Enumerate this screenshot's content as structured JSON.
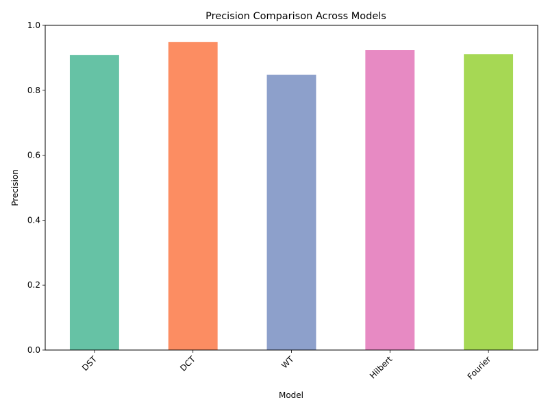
{
  "chart_data": {
    "type": "bar",
    "title": "Precision Comparison Across Models",
    "xlabel": "Model",
    "ylabel": "Precision",
    "categories": [
      "DST",
      "DCT",
      "WT",
      "Hilbert",
      "Fourier"
    ],
    "values": [
      0.909,
      0.949,
      0.848,
      0.924,
      0.911
    ],
    "colors": [
      "#66c2a5",
      "#fc8d62",
      "#8da0cb",
      "#e78ac3",
      "#a6d854"
    ],
    "ylim": [
      0,
      1.0
    ],
    "yticks": [
      "0.0",
      "0.2",
      "0.4",
      "0.6",
      "0.8",
      "1.0"
    ],
    "xtick_rotation": 45,
    "grid": false,
    "legend": "none"
  }
}
